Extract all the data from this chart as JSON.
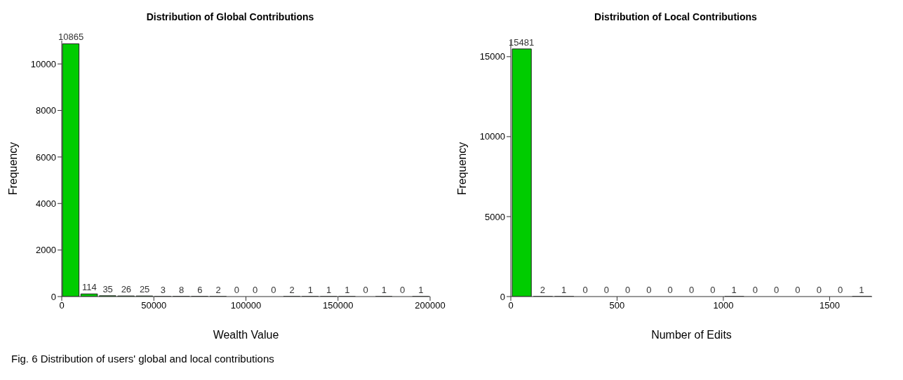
{
  "chart_data": [
    {
      "type": "histogram",
      "title": "Distribution of Global Contributions",
      "xlabel": "Wealth Value",
      "ylabel": "Frequency",
      "bins": [
        0,
        10000,
        20000,
        30000,
        40000,
        50000,
        60000,
        70000,
        80000,
        90000,
        100000,
        110000,
        120000,
        130000,
        140000,
        150000,
        160000,
        170000,
        180000,
        190000,
        200000
      ],
      "values": [
        10865,
        114,
        35,
        26,
        25,
        3,
        8,
        6,
        2,
        0,
        0,
        0,
        2,
        1,
        1,
        1,
        0,
        1,
        0,
        1
      ],
      "color": "#00cc00",
      "xlim": [
        0,
        200000
      ],
      "xticks": [
        0,
        50000,
        100000,
        150000,
        200000
      ],
      "ylim": [
        0,
        11000
      ],
      "yticks": [
        0,
        2000,
        4000,
        6000,
        8000,
        10000
      ],
      "data_labels": true,
      "grid": false,
      "annotations": [
        "Fig. 6  Distribution of users' global and local contributions"
      ]
    },
    {
      "type": "histogram",
      "title": "Distribution of Local Contributions",
      "xlabel": "Number of Edits",
      "ylabel": "Frequency",
      "bins": [
        0,
        100,
        200,
        300,
        400,
        500,
        600,
        700,
        800,
        900,
        1000,
        1100,
        1200,
        1300,
        1400,
        1500,
        1600,
        1700
      ],
      "values": [
        15481,
        2,
        1,
        0,
        0,
        0,
        0,
        0,
        0,
        0,
        1,
        0,
        0,
        0,
        0,
        0,
        1
      ],
      "color": "#00cc00",
      "xlim": [
        0,
        1700
      ],
      "xticks": [
        0,
        500,
        1000,
        1500
      ],
      "ylim": [
        0,
        16000
      ],
      "yticks": [
        0,
        5000,
        10000,
        15000
      ],
      "data_labels": true,
      "grid": false
    }
  ]
}
